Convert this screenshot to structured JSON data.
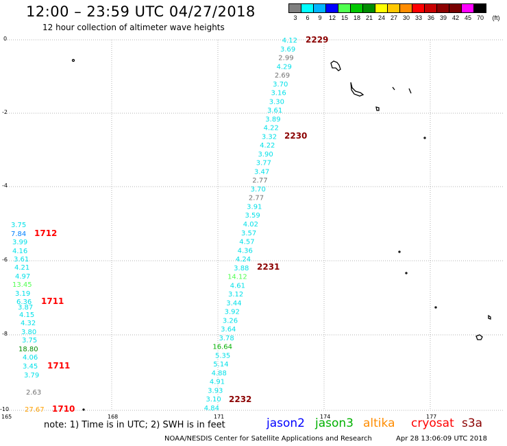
{
  "header": {
    "title": "12:00 – 23:59 UTC 04/27/2018",
    "subtitle": "12 hour collection of altimeter wave heights"
  },
  "colorbar": {
    "unit_label": "(ft)",
    "bins": [
      {
        "label": "3",
        "color": "#808080"
      },
      {
        "label": "6",
        "color": "#00ffff"
      },
      {
        "label": "9",
        "color": "#00b4ff"
      },
      {
        "label": "12",
        "color": "#0000ff"
      },
      {
        "label": "15",
        "color": "#50ff50"
      },
      {
        "label": "18",
        "color": "#00c800"
      },
      {
        "label": "21",
        "color": "#008c00"
      },
      {
        "label": "24",
        "color": "#ffff00"
      },
      {
        "label": "27",
        "color": "#ffc800"
      },
      {
        "label": "30",
        "color": "#ff8c00"
      },
      {
        "label": "33",
        "color": "#ff0000"
      },
      {
        "label": "36",
        "color": "#c80000"
      },
      {
        "label": "39",
        "color": "#8c0000"
      },
      {
        "label": "42",
        "color": "#780000"
      },
      {
        "label": "45",
        "color": "#ff00ff"
      },
      {
        "label": "70",
        "color": "#000000"
      }
    ]
  },
  "axes": {
    "lat_labels": [
      "0",
      "-2",
      "-4",
      "-6",
      "-8",
      "-10"
    ],
    "lon_labels": [
      "165",
      "168",
      "171",
      "174",
      "177"
    ]
  },
  "tracks": [
    {
      "id": "east",
      "tags": [
        {
          "text": "2229",
          "color": "#8b0000"
        },
        {
          "text": "2230",
          "color": "#8b0000"
        },
        {
          "text": "2231",
          "color": "#8b0000"
        },
        {
          "text": "2232",
          "color": "#8b0000"
        }
      ],
      "values": [
        {
          "text": "4.12",
          "color": "#00e0e8"
        },
        {
          "text": "3.69",
          "color": "#00e0e8"
        },
        {
          "text": "2.99",
          "color": "#707070"
        },
        {
          "text": "4.29",
          "color": "#00e0e8"
        },
        {
          "text": "2.69",
          "color": "#707070"
        },
        {
          "text": "3.70",
          "color": "#00e0e8"
        },
        {
          "text": "3.16",
          "color": "#00e0e8"
        },
        {
          "text": "3.30",
          "color": "#00e0e8"
        },
        {
          "text": "3.61",
          "color": "#00e0e8"
        },
        {
          "text": "3.89",
          "color": "#00e0e8"
        },
        {
          "text": "4.22",
          "color": "#00e0e8"
        },
        {
          "text": "3.32",
          "color": "#00e0e8"
        },
        {
          "text": "4.22",
          "color": "#00e0e8"
        },
        {
          "text": "3.90",
          "color": "#00e0e8"
        },
        {
          "text": "3.77",
          "color": "#00e0e8"
        },
        {
          "text": "3.47",
          "color": "#00e0e8"
        },
        {
          "text": "2.77",
          "color": "#707070"
        },
        {
          "text": "3.70",
          "color": "#00e0e8"
        },
        {
          "text": "2.77",
          "color": "#707070"
        },
        {
          "text": "3.91",
          "color": "#00e0e8"
        },
        {
          "text": "3.59",
          "color": "#00e0e8"
        },
        {
          "text": "4.02",
          "color": "#00e0e8"
        },
        {
          "text": "3.57",
          "color": "#00e0e8"
        },
        {
          "text": "4.57",
          "color": "#00e0e8"
        },
        {
          "text": "4.36",
          "color": "#00e0e8"
        },
        {
          "text": "4.24",
          "color": "#00e0e8"
        },
        {
          "text": "3.88",
          "color": "#00e0e8"
        },
        {
          "text": "14.12",
          "color": "#50ff50"
        },
        {
          "text": "4.61",
          "color": "#00e0e8"
        },
        {
          "text": "3.12",
          "color": "#00e0e8"
        },
        {
          "text": "3.44",
          "color": "#00e0e8"
        },
        {
          "text": "3.92",
          "color": "#00e0e8"
        },
        {
          "text": "3.26",
          "color": "#00e0e8"
        },
        {
          "text": "3.64",
          "color": "#00e0e8"
        },
        {
          "text": "3.78",
          "color": "#00e0e8"
        },
        {
          "text": "16.64",
          "color": "#00b000"
        },
        {
          "text": "5.35",
          "color": "#00e0e8"
        },
        {
          "text": "5.14",
          "color": "#00e0e8"
        },
        {
          "text": "4.88",
          "color": "#00e0e8"
        },
        {
          "text": "4.91",
          "color": "#00e0e8"
        },
        {
          "text": "3.93",
          "color": "#00e0e8"
        },
        {
          "text": "3.10",
          "color": "#00e0e8"
        },
        {
          "text": "4.84",
          "color": "#00e0e8"
        }
      ]
    },
    {
      "id": "west",
      "tags": [
        {
          "text": "1712",
          "color": "#ff0000"
        },
        {
          "text": "1711",
          "color": "#ff0000"
        },
        {
          "text": "1711",
          "color": "#ff0000"
        },
        {
          "text": "1710",
          "color": "#ff0000"
        }
      ],
      "values": [
        {
          "text": "3.75",
          "color": "#00e0e8"
        },
        {
          "text": "7.84",
          "color": "#0080ff"
        },
        {
          "text": "3.99",
          "color": "#00e0e8"
        },
        {
          "text": "4.16",
          "color": "#00e0e8"
        },
        {
          "text": "3.61",
          "color": "#00e0e8"
        },
        {
          "text": "4.21",
          "color": "#00e0e8"
        },
        {
          "text": "4.97",
          "color": "#00e0e8"
        },
        {
          "text": "13.45",
          "color": "#50ff50"
        },
        {
          "text": "3.19",
          "color": "#00e0e8"
        },
        {
          "text": "6.36",
          "color": "#00e0e8"
        },
        {
          "text": "3.87",
          "color": "#00e0e8"
        },
        {
          "text": "4.15",
          "color": "#00e0e8"
        },
        {
          "text": "4.32",
          "color": "#00e0e8"
        },
        {
          "text": "3.80",
          "color": "#00e0e8"
        },
        {
          "text": "3.75",
          "color": "#00e0e8"
        },
        {
          "text": "18.80",
          "color": "#008c00"
        },
        {
          "text": "4.06",
          "color": "#00e0e8"
        },
        {
          "text": "3.45",
          "color": "#00e0e8"
        },
        {
          "text": "3.79",
          "color": "#00e0e8"
        },
        {
          "text": "2.63",
          "color": "#707070"
        },
        {
          "text": "27.67",
          "color": "#ffa000"
        }
      ]
    }
  ],
  "note": "note: 1) Time is in UTC; 2) SWH is in feet",
  "legend": [
    {
      "text": "jason2",
      "color": "#0000ff"
    },
    {
      "text": "jason3",
      "color": "#00b000"
    },
    {
      "text": "altika",
      "color": "#ff8c00"
    },
    {
      "text": "cryosat",
      "color": "#ff0000"
    },
    {
      "text": "s3a",
      "color": "#8b0000"
    }
  ],
  "footer": {
    "credit": "NOAA/NESDIS Center for Satellite Applications and Research",
    "timestamp": "Apr 28 13:06:09 UTC 2018"
  }
}
